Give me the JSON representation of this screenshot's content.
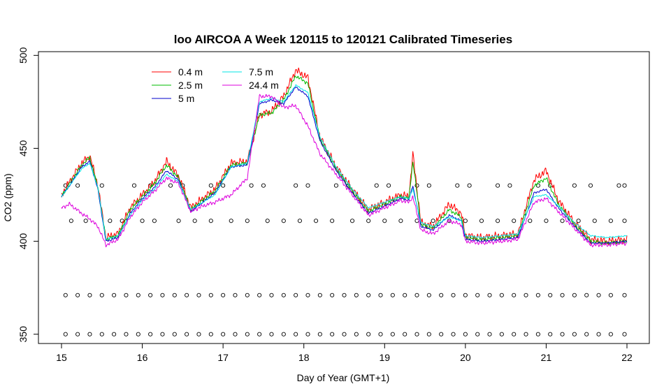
{
  "chart_data": {
    "type": "line",
    "title": "loo AIRCOA A  Week 120115 to 120121  Calibrated Timeseries",
    "xlabel": "Day of Year (GMT+1)",
    "ylabel": "CO2 (ppm)",
    "xlim": [
      15,
      22
    ],
    "ylim": [
      345,
      502
    ],
    "xticks": [
      "15",
      "16",
      "17",
      "18",
      "19",
      "20",
      "21",
      "22"
    ],
    "yticks": [
      "350",
      "400",
      "450",
      "500"
    ],
    "legend_position": "top-left",
    "series": [
      {
        "name": "0.4 m",
        "color": "#ff0000",
        "offset": 1.2,
        "x": [
          15.0,
          15.1,
          15.25,
          15.35,
          15.45,
          15.55,
          15.7,
          15.85,
          16.0,
          16.15,
          16.3,
          16.45,
          16.6,
          16.75,
          16.9,
          17.1,
          17.3,
          17.45,
          17.6,
          17.75,
          17.9,
          18.05,
          18.2,
          18.4,
          18.6,
          18.8,
          19.0,
          19.2,
          19.3,
          19.35,
          19.45,
          19.6,
          19.8,
          19.95,
          20.0,
          20.2,
          20.45,
          20.65,
          20.85,
          21.0,
          21.15,
          21.35,
          21.55,
          21.75,
          22.0
        ],
        "y": [
          425,
          432,
          442,
          446,
          430,
          402,
          404,
          418,
          425,
          432,
          443,
          435,
          418,
          423,
          428,
          442,
          443,
          468,
          470,
          478,
          492,
          488,
          456,
          440,
          428,
          417,
          421,
          425,
          424,
          447,
          410,
          408,
          420,
          415,
          403,
          402,
          403,
          404,
          433,
          438,
          422,
          410,
          401,
          400,
          401
        ]
      },
      {
        "name": "2.5 m",
        "color": "#00bb00",
        "offset": 0.6,
        "x": [
          15.0,
          15.1,
          15.25,
          15.35,
          15.45,
          15.55,
          15.7,
          15.85,
          16.0,
          16.15,
          16.3,
          16.45,
          16.6,
          16.75,
          16.9,
          17.1,
          17.3,
          17.45,
          17.6,
          17.75,
          17.9,
          18.05,
          18.2,
          18.4,
          18.6,
          18.8,
          19.0,
          19.2,
          19.3,
          19.35,
          19.45,
          19.6,
          19.8,
          19.95,
          20.0,
          20.2,
          20.45,
          20.65,
          20.85,
          21.0,
          21.15,
          21.35,
          21.55,
          21.75,
          22.0
        ],
        "y": [
          424,
          431,
          441,
          445,
          429,
          401,
          403,
          417,
          424,
          431,
          441,
          434,
          417,
          422,
          427,
          441,
          442,
          468,
          469,
          476,
          489,
          485,
          455,
          439,
          427,
          416,
          420,
          424,
          423,
          443,
          409,
          407,
          417,
          413,
          402,
          401,
          402,
          403,
          430,
          434,
          420,
          409,
          400,
          399,
          400
        ]
      },
      {
        "name": "5 m",
        "color": "#0000cc",
        "offset": 0.3,
        "x": [
          15.0,
          15.1,
          15.25,
          15.35,
          15.45,
          15.55,
          15.7,
          15.85,
          16.0,
          16.15,
          16.3,
          16.45,
          16.6,
          16.75,
          16.9,
          17.1,
          17.3,
          17.45,
          17.6,
          17.75,
          17.9,
          18.05,
          18.2,
          18.4,
          18.6,
          18.8,
          19.0,
          19.2,
          19.3,
          19.35,
          19.45,
          19.6,
          19.8,
          19.95,
          20.0,
          20.2,
          20.45,
          20.65,
          20.85,
          21.0,
          21.15,
          21.35,
          21.55,
          21.75,
          22.0
        ],
        "y": [
          424,
          430,
          440,
          443,
          428,
          400,
          402,
          415,
          423,
          429,
          438,
          433,
          416,
          421,
          426,
          440,
          441,
          474,
          476,
          474,
          483,
          478,
          454,
          438,
          426,
          415,
          419,
          423,
          422,
          430,
          408,
          406,
          414,
          411,
          401,
          400,
          401,
          402,
          426,
          428,
          418,
          408,
          399,
          399,
          400
        ]
      },
      {
        "name": "7.5 m",
        "color": "#00e5e5",
        "offset": 0.2,
        "x": [
          15.0,
          15.1,
          15.25,
          15.35,
          15.45,
          15.55,
          15.7,
          15.85,
          16.0,
          16.15,
          16.3,
          16.45,
          16.6,
          16.75,
          16.9,
          17.1,
          17.3,
          17.45,
          17.6,
          17.75,
          17.9,
          18.05,
          18.2,
          18.4,
          18.6,
          18.8,
          19.0,
          19.2,
          19.3,
          19.35,
          19.45,
          19.6,
          19.8,
          19.95,
          20.0,
          20.2,
          20.45,
          20.65,
          20.85,
          21.0,
          21.15,
          21.35,
          21.55,
          21.75,
          22.0
        ],
        "y": [
          424,
          430,
          439,
          442,
          429,
          401,
          403,
          414,
          422,
          428,
          436,
          432,
          417,
          421,
          425,
          440,
          442,
          475,
          477,
          475,
          484,
          480,
          456,
          440,
          428,
          418,
          421,
          424,
          423,
          428,
          410,
          408,
          413,
          411,
          403,
          402,
          403,
          404,
          424,
          425,
          419,
          410,
          403,
          402,
          403
        ]
      },
      {
        "name": "24.4 m",
        "color": "#dd00dd",
        "offset": 0.6,
        "x": [
          15.0,
          15.1,
          15.25,
          15.35,
          15.45,
          15.55,
          15.7,
          15.85,
          16.0,
          16.15,
          16.3,
          16.45,
          16.6,
          16.75,
          16.9,
          17.1,
          17.3,
          17.45,
          17.6,
          17.75,
          17.9,
          18.05,
          18.2,
          18.4,
          18.6,
          18.8,
          19.0,
          19.2,
          19.3,
          19.35,
          19.45,
          19.6,
          19.8,
          19.95,
          20.0,
          20.2,
          20.45,
          20.65,
          20.85,
          21.0,
          21.15,
          21.35,
          21.55,
          21.75,
          22.0
        ],
        "y": [
          418,
          420,
          415,
          412,
          408,
          398,
          401,
          413,
          421,
          427,
          434,
          431,
          416,
          419,
          421,
          425,
          434,
          478,
          478,
          472,
          473,
          462,
          447,
          436,
          425,
          414,
          418,
          422,
          421,
          424,
          406,
          404,
          411,
          409,
          400,
          399,
          400,
          401,
          421,
          423,
          416,
          407,
          398,
          398,
          399
        ]
      }
    ],
    "marker_rows": [
      {
        "y": 430,
        "x": [
          15.05,
          15.2,
          15.5,
          15.9,
          16.1,
          16.35,
          16.5,
          16.85,
          17.0,
          17.35,
          17.5,
          17.9,
          18.05,
          18.4,
          18.55,
          18.9,
          19.05,
          19.4,
          19.55,
          19.9,
          20.05,
          20.4,
          20.55,
          20.9,
          21.05,
          21.35,
          21.55,
          21.9,
          21.97
        ]
      },
      {
        "y": 411,
        "x": [
          15.12,
          15.3,
          15.6,
          15.75,
          16.0,
          16.15,
          16.45,
          16.65,
          16.85,
          17.1,
          17.3,
          17.55,
          17.75,
          17.95,
          18.15,
          18.35,
          18.6,
          18.8,
          19.0,
          19.2,
          19.4,
          19.6,
          19.8,
          20.0,
          20.2,
          20.4,
          20.6,
          20.8,
          21.0,
          21.2,
          21.4,
          21.6,
          21.8,
          21.97
        ]
      },
      {
        "y": 371,
        "x": [
          15.05,
          15.2,
          15.35,
          15.5,
          15.65,
          15.8,
          15.95,
          16.1,
          16.25,
          16.4,
          16.55,
          16.7,
          16.85,
          17.0,
          17.15,
          17.3,
          17.45,
          17.6,
          17.75,
          17.9,
          18.05,
          18.2,
          18.35,
          18.5,
          18.65,
          18.8,
          18.95,
          19.1,
          19.25,
          19.4,
          19.55,
          19.7,
          19.85,
          20.0,
          20.15,
          20.3,
          20.45,
          20.6,
          20.75,
          20.9,
          21.05,
          21.2,
          21.35,
          21.5,
          21.65,
          21.8,
          21.97
        ]
      },
      {
        "y": 350,
        "x": [
          15.05,
          15.2,
          15.35,
          15.5,
          15.65,
          15.8,
          15.95,
          16.1,
          16.25,
          16.4,
          16.55,
          16.7,
          16.85,
          17.0,
          17.15,
          17.3,
          17.45,
          17.6,
          17.75,
          17.9,
          18.05,
          18.2,
          18.35,
          18.5,
          18.65,
          18.8,
          18.95,
          19.1,
          19.25,
          19.4,
          19.55,
          19.7,
          19.85,
          20.0,
          20.15,
          20.3,
          20.45,
          20.6,
          20.75,
          20.9,
          21.05,
          21.2,
          21.35,
          21.5,
          21.65,
          21.8,
          21.97
        ]
      }
    ]
  }
}
